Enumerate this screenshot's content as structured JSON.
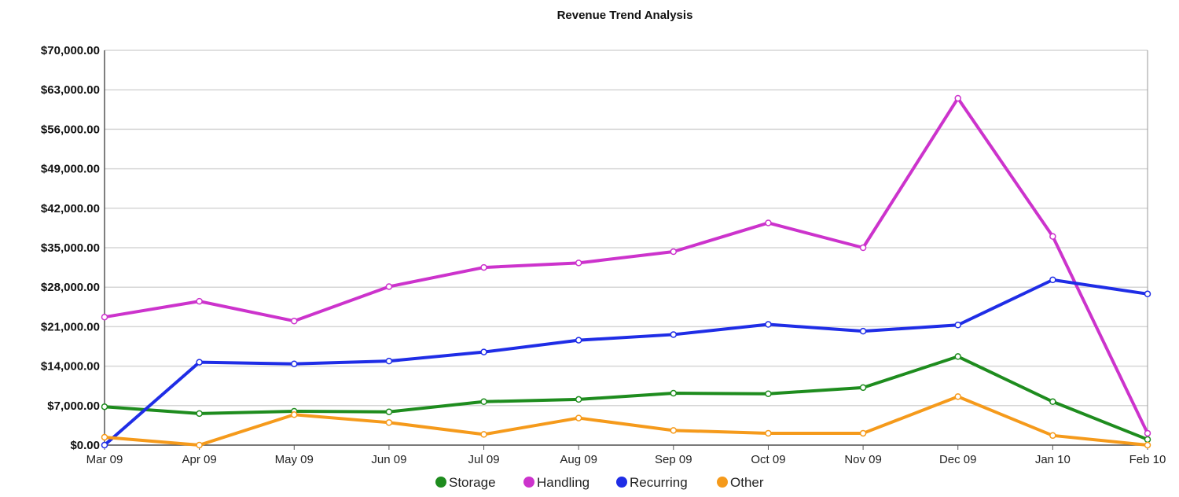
{
  "chart_data": {
    "type": "line",
    "title": "Revenue Trend Analysis",
    "xlabel": "",
    "ylabel": "",
    "categories": [
      "Mar 09",
      "Apr 09",
      "May 09",
      "Jun 09",
      "Jul 09",
      "Aug 09",
      "Sep 09",
      "Oct 09",
      "Nov 09",
      "Dec 09",
      "Jan 10",
      "Feb 10"
    ],
    "ylim": [
      0,
      70000
    ],
    "yticks": [
      "$0.00",
      "$7,000.00",
      "$14,000.00",
      "$21,000.00",
      "$28,000.00",
      "$35,000.00",
      "$42,000.00",
      "$49,000.00",
      "$56,000.00",
      "$63,000.00",
      "$70,000.00"
    ],
    "ytick_values": [
      0,
      7000,
      14000,
      21000,
      28000,
      35000,
      42000,
      49000,
      56000,
      63000,
      70000
    ],
    "grid": true,
    "legend_position": "bottom",
    "series": [
      {
        "name": "Storage",
        "color": "#1e8c1e",
        "values": [
          6800,
          5600,
          6000,
          5900,
          7700,
          8100,
          9200,
          9100,
          10200,
          15700,
          7700,
          1000
        ]
      },
      {
        "name": "Handling",
        "color": "#cc33cc",
        "values": [
          22700,
          25500,
          22000,
          28100,
          31500,
          32300,
          34300,
          39400,
          35000,
          61500,
          37000,
          2100
        ]
      },
      {
        "name": "Recurring",
        "color": "#1f2de6",
        "values": [
          0,
          14700,
          14400,
          14900,
          16500,
          18600,
          19600,
          21400,
          20200,
          21300,
          29300,
          26800
        ]
      },
      {
        "name": "Other",
        "color": "#f59a1b",
        "values": [
          1400,
          0,
          5400,
          4000,
          1900,
          4800,
          2600,
          2100,
          2100,
          8600,
          1700,
          0
        ]
      }
    ]
  }
}
